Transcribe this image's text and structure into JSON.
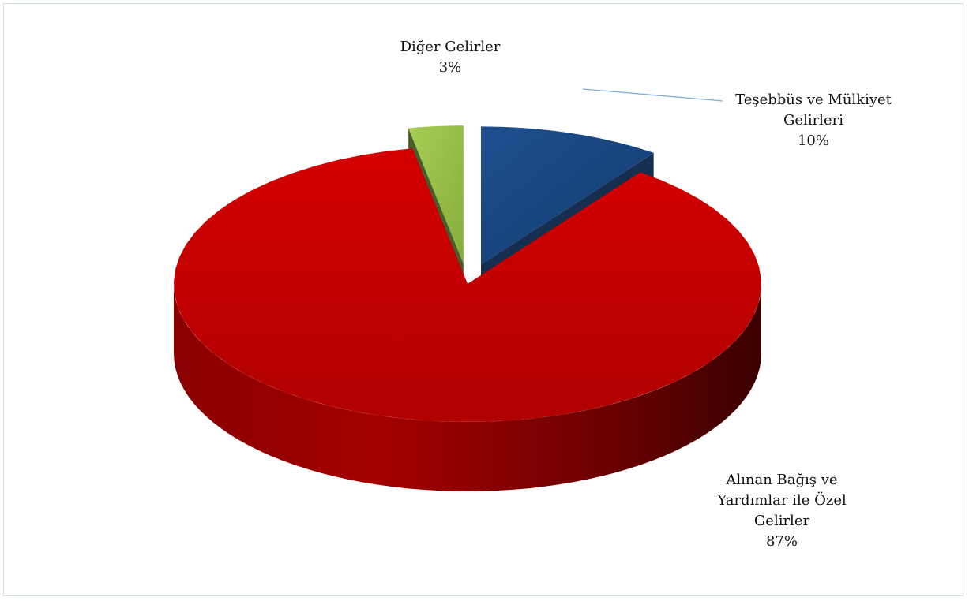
{
  "chart_data": {
    "type": "pie",
    "style": "3d-exploded",
    "title": "",
    "slices": [
      {
        "name_lines": [
          "Teşebbüs ve Mülkiyet",
          "Gelirleri"
        ],
        "value": 10,
        "value_label": "10%",
        "color": "#1f4e8c",
        "side_color": "#0d2750"
      },
      {
        "name_lines": [
          "Alınan Bağış ve",
          "Yardımlar ile Özel",
          "Gelirler"
        ],
        "value": 87,
        "value_label": "87%",
        "color": "#cc0000",
        "side_color": "#6e0000"
      },
      {
        "name_lines": [
          "Diğer Gelirler"
        ],
        "value": 3,
        "value_label": "3%",
        "color": "#9bc34b",
        "side_color": "#4b6326"
      }
    ],
    "legend": "none",
    "data_labels": "outside"
  }
}
